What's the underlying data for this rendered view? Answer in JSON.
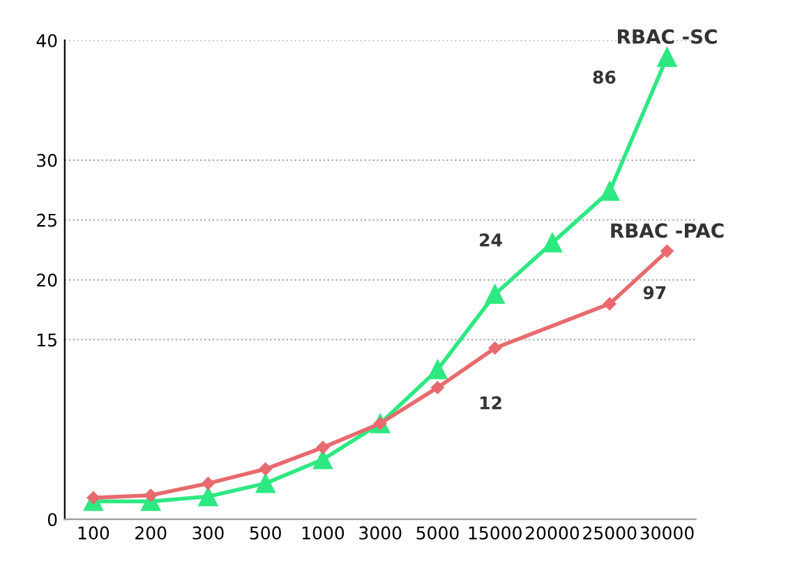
{
  "chart_data": {
    "type": "line",
    "categories": [
      "100",
      "200",
      "300",
      "500",
      "1000",
      "3000",
      "5000",
      "15000",
      "20000",
      "25000",
      "30000"
    ],
    "series": [
      {
        "name": "RBAC -SC",
        "color": "#2ee882",
        "marker": "triangle",
        "values": [
          1.5,
          1.5,
          1.9,
          3.0,
          5.0,
          8.0,
          12.5,
          18.8,
          23.1,
          27.4,
          38.6
        ]
      },
      {
        "name": "RBAC -PAC",
        "color": "#e86a6e",
        "marker": "diamond",
        "values": [
          1.8,
          2.0,
          3.0,
          4.2,
          6.0,
          8.0,
          11.0,
          14.3,
          null,
          18.0,
          22.4
        ]
      }
    ],
    "ylim": [
      0,
      40
    ],
    "yticks": [
      0,
      15,
      20,
      25,
      30,
      40
    ],
    "grid": "y",
    "legend": false,
    "line_style": "solid",
    "annotations": [
      "86",
      "24",
      "97",
      "12"
    ]
  }
}
